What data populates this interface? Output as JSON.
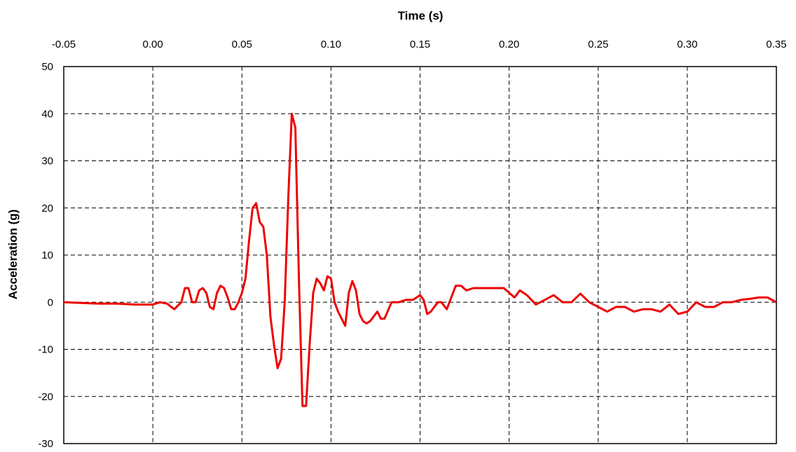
{
  "chart_data": {
    "type": "line",
    "title": "",
    "xlabel": "Time (s)",
    "ylabel": "Acceleration (g)",
    "xlim": [
      -0.05,
      0.35
    ],
    "ylim": [
      -30,
      50
    ],
    "x_ticks": [
      "-0.05",
      "0.00",
      "0.05",
      "0.10",
      "0.15",
      "0.20",
      "0.25",
      "0.30",
      "0.35"
    ],
    "y_ticks": [
      "50",
      "40",
      "30",
      "20",
      "10",
      "0",
      "-10",
      "-20",
      "-30"
    ],
    "x_axis_position": "top",
    "grid": true,
    "grid_style": "dashed",
    "legend": "none",
    "series": [
      {
        "color": "#ee0000",
        "x": [
          -0.05,
          -0.03,
          -0.02,
          -0.01,
          0.0,
          0.004,
          0.008,
          0.012,
          0.016,
          0.018,
          0.02,
          0.022,
          0.024,
          0.026,
          0.028,
          0.03,
          0.032,
          0.034,
          0.036,
          0.038,
          0.04,
          0.042,
          0.044,
          0.046,
          0.048,
          0.05,
          0.052,
          0.054,
          0.056,
          0.058,
          0.06,
          0.062,
          0.064,
          0.066,
          0.068,
          0.07,
          0.072,
          0.074,
          0.076,
          0.078,
          0.08,
          0.082,
          0.084,
          0.086,
          0.088,
          0.09,
          0.092,
          0.094,
          0.096,
          0.098,
          0.1,
          0.102,
          0.104,
          0.106,
          0.108,
          0.11,
          0.112,
          0.114,
          0.116,
          0.118,
          0.12,
          0.122,
          0.124,
          0.126,
          0.128,
          0.13,
          0.134,
          0.138,
          0.142,
          0.146,
          0.15,
          0.152,
          0.154,
          0.156,
          0.158,
          0.16,
          0.162,
          0.165,
          0.17,
          0.173,
          0.176,
          0.18,
          0.19,
          0.197,
          0.2,
          0.203,
          0.206,
          0.21,
          0.215,
          0.22,
          0.225,
          0.23,
          0.235,
          0.24,
          0.245,
          0.25,
          0.255,
          0.26,
          0.265,
          0.27,
          0.275,
          0.28,
          0.285,
          0.29,
          0.295,
          0.3,
          0.305,
          0.31,
          0.315,
          0.32,
          0.325,
          0.33,
          0.335,
          0.34,
          0.345,
          0.35
        ],
        "y": [
          0.0,
          -0.3,
          -0.3,
          -0.5,
          -0.5,
          0.0,
          -0.3,
          -1.5,
          0.0,
          3.0,
          3.0,
          0.0,
          0.0,
          2.5,
          3.0,
          2.0,
          -1.0,
          -1.5,
          2.0,
          3.5,
          3.0,
          1.0,
          -1.5,
          -1.5,
          0.0,
          2.0,
          5.0,
          13.0,
          20.0,
          21.0,
          17.0,
          16.0,
          10.0,
          -3.0,
          -9.0,
          -14.0,
          -12.0,
          0.0,
          22.0,
          40.0,
          37.0,
          5.0,
          -22.0,
          -22.0,
          -9.0,
          2.0,
          5.0,
          4.0,
          2.5,
          5.5,
          5.0,
          0.0,
          -2.0,
          -3.5,
          -5.0,
          2.0,
          4.5,
          2.5,
          -2.5,
          -4.0,
          -4.5,
          -4.0,
          -3.0,
          -2.0,
          -3.5,
          -3.5,
          0.0,
          0.0,
          0.5,
          0.5,
          1.5,
          0.5,
          -2.5,
          -2.0,
          -1.0,
          0.0,
          0.0,
          -1.5,
          3.5,
          3.5,
          2.5,
          3.0,
          3.0,
          3.0,
          2.0,
          1.0,
          2.5,
          1.5,
          -0.5,
          0.5,
          1.5,
          0.0,
          0.0,
          1.8,
          0.0,
          -1.0,
          -2.0,
          -1.0,
          -1.0,
          -2.0,
          -1.5,
          -1.5,
          -2.0,
          -0.5,
          -2.5,
          -2.0,
          0.0,
          -1.0,
          -1.0,
          0.0,
          0.0,
          0.5,
          0.7,
          1.0,
          1.0,
          0.0
        ]
      }
    ]
  }
}
